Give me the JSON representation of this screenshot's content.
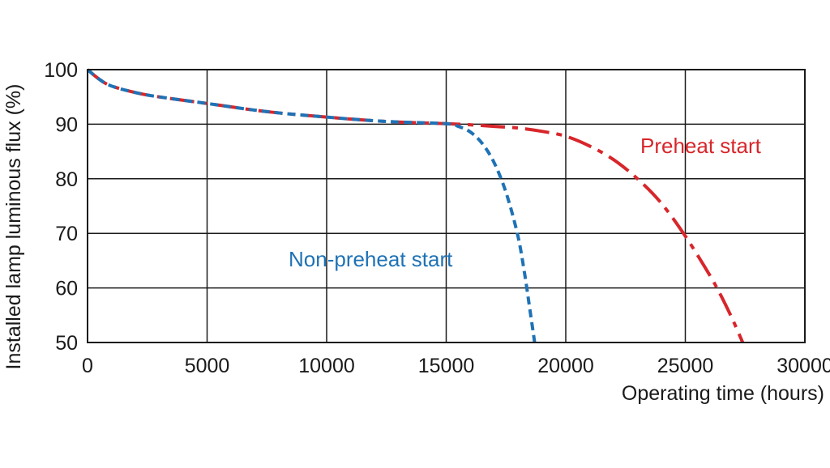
{
  "chart_data": {
    "type": "line",
    "title": "",
    "xlabel": "Operating time (hours)",
    "ylabel": "Installed lamp luminous flux  (%)",
    "xlim": [
      0,
      30000
    ],
    "ylim": [
      50,
      100
    ],
    "xticks": [
      0,
      5000,
      10000,
      15000,
      20000,
      25000,
      30000
    ],
    "yticks": [
      50,
      60,
      70,
      80,
      90,
      100
    ],
    "xtick_labels": [
      "0",
      "5000",
      "10000",
      "15000",
      "20000",
      "25000",
      "30000"
    ],
    "ytick_labels": [
      "50",
      "60",
      "70",
      "80",
      "90",
      "100"
    ],
    "grid": true,
    "series": [
      {
        "name": "Preheat start",
        "color": "#d7262b",
        "line_style": "dash-dot",
        "x": [
          0,
          500,
          1000,
          2000,
          3000,
          5000,
          7500,
          10000,
          12500,
          15000,
          16000,
          17000,
          18000,
          19000,
          20000,
          21000,
          22000,
          23000,
          24000,
          25000,
          26000,
          26500,
          27000,
          27400
        ],
        "y": [
          100,
          98.2,
          97.0,
          95.8,
          95.0,
          93.8,
          92.3,
          91.3,
          90.5,
          90.1,
          89.9,
          89.6,
          89.3,
          88.7,
          87.8,
          86.0,
          83.5,
          80.0,
          75.5,
          69.5,
          62.5,
          58.5,
          54.0,
          50.0
        ]
      },
      {
        "name": "Non-preheat start",
        "color": "#1f72b5",
        "line_style": "dashed",
        "x": [
          0,
          500,
          1000,
          2000,
          3000,
          5000,
          7500,
          10000,
          12500,
          15000,
          15500,
          16000,
          16500,
          17000,
          17500,
          18000,
          18300,
          18500,
          18700
        ],
        "y": [
          100,
          98.2,
          97.0,
          95.8,
          95.0,
          93.8,
          92.3,
          91.3,
          90.5,
          90.1,
          89.6,
          88.6,
          86.5,
          83.0,
          77.5,
          69.5,
          62.0,
          56.0,
          50.0
        ]
      }
    ],
    "annotations": [
      "Preheat start",
      "Non-preheat start"
    ]
  }
}
